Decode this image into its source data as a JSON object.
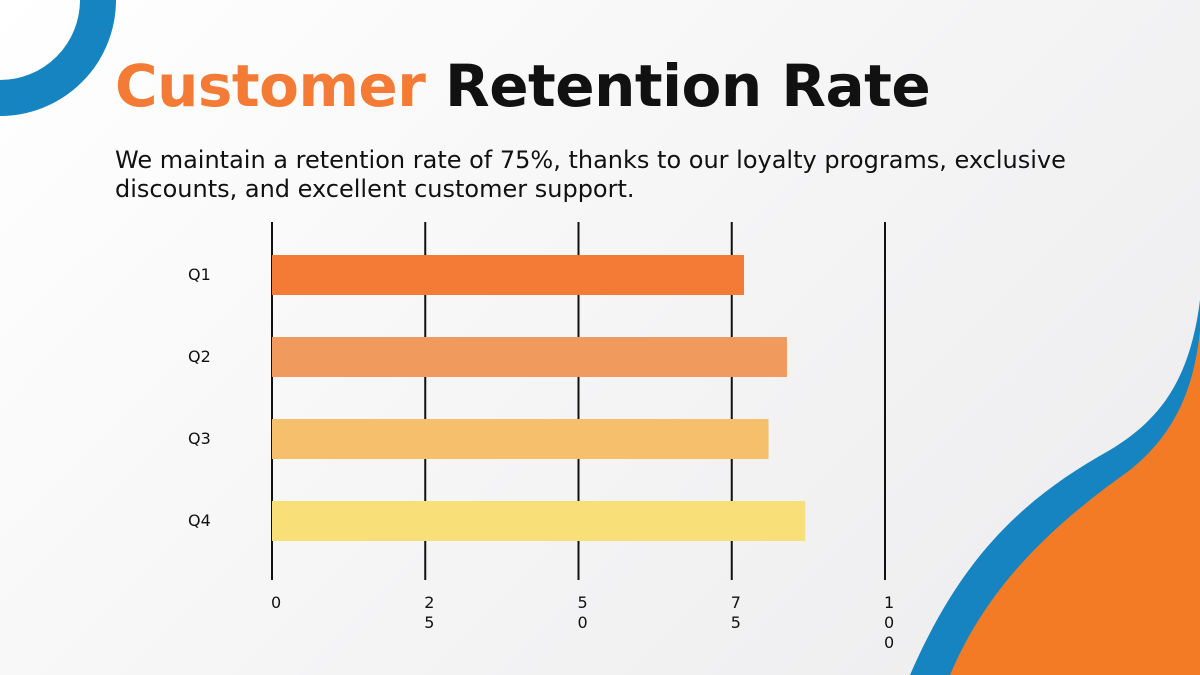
{
  "chart_data": {
    "type": "bar",
    "orientation": "horizontal",
    "title": [
      "Customer",
      "Retention Rate"
    ],
    "subtitle": "We maintain a retention rate of 75%, thanks to our loyalty programs, exclusive discounts, and excellent customer support.",
    "categories": [
      "Q1",
      "Q2",
      "Q3",
      "Q4"
    ],
    "values": [
      77,
      84,
      81,
      87
    ],
    "colors": [
      "#f47b35",
      "#f19a5e",
      "#f5bf6b",
      "#f8df78"
    ],
    "xlim": [
      0,
      100
    ],
    "xticks": [
      0,
      25,
      50,
      75,
      100
    ],
    "grid": true
  }
}
